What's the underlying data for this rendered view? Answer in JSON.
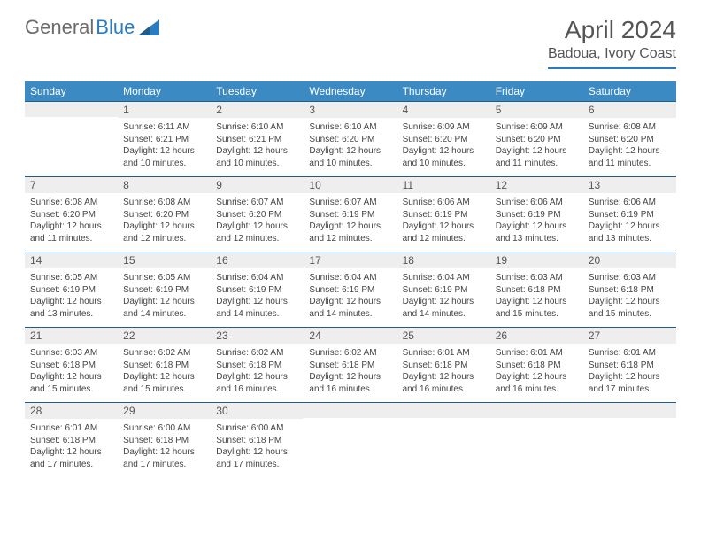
{
  "brand": {
    "part1": "General",
    "part2": "Blue"
  },
  "title": "April 2024",
  "location": "Badoua, Ivory Coast",
  "colors": {
    "header_bg": "#3b8ac4",
    "header_text": "#ffffff",
    "daynum_bg": "#eeeeee",
    "rule": "#1f5c8b",
    "brand_grey": "#6b6b6b",
    "brand_blue": "#2b7bbf",
    "body_text": "#444444"
  },
  "weekdays": [
    "Sunday",
    "Monday",
    "Tuesday",
    "Wednesday",
    "Thursday",
    "Friday",
    "Saturday"
  ],
  "grid": [
    [
      {
        "day": "",
        "lines": []
      },
      {
        "day": "1",
        "lines": [
          "Sunrise: 6:11 AM",
          "Sunset: 6:21 PM",
          "Daylight: 12 hours and 10 minutes."
        ]
      },
      {
        "day": "2",
        "lines": [
          "Sunrise: 6:10 AM",
          "Sunset: 6:21 PM",
          "Daylight: 12 hours and 10 minutes."
        ]
      },
      {
        "day": "3",
        "lines": [
          "Sunrise: 6:10 AM",
          "Sunset: 6:20 PM",
          "Daylight: 12 hours and 10 minutes."
        ]
      },
      {
        "day": "4",
        "lines": [
          "Sunrise: 6:09 AM",
          "Sunset: 6:20 PM",
          "Daylight: 12 hours and 10 minutes."
        ]
      },
      {
        "day": "5",
        "lines": [
          "Sunrise: 6:09 AM",
          "Sunset: 6:20 PM",
          "Daylight: 12 hours and 11 minutes."
        ]
      },
      {
        "day": "6",
        "lines": [
          "Sunrise: 6:08 AM",
          "Sunset: 6:20 PM",
          "Daylight: 12 hours and 11 minutes."
        ]
      }
    ],
    [
      {
        "day": "7",
        "lines": [
          "Sunrise: 6:08 AM",
          "Sunset: 6:20 PM",
          "Daylight: 12 hours and 11 minutes."
        ]
      },
      {
        "day": "8",
        "lines": [
          "Sunrise: 6:08 AM",
          "Sunset: 6:20 PM",
          "Daylight: 12 hours and 12 minutes."
        ]
      },
      {
        "day": "9",
        "lines": [
          "Sunrise: 6:07 AM",
          "Sunset: 6:20 PM",
          "Daylight: 12 hours and 12 minutes."
        ]
      },
      {
        "day": "10",
        "lines": [
          "Sunrise: 6:07 AM",
          "Sunset: 6:19 PM",
          "Daylight: 12 hours and 12 minutes."
        ]
      },
      {
        "day": "11",
        "lines": [
          "Sunrise: 6:06 AM",
          "Sunset: 6:19 PM",
          "Daylight: 12 hours and 12 minutes."
        ]
      },
      {
        "day": "12",
        "lines": [
          "Sunrise: 6:06 AM",
          "Sunset: 6:19 PM",
          "Daylight: 12 hours and 13 minutes."
        ]
      },
      {
        "day": "13",
        "lines": [
          "Sunrise: 6:06 AM",
          "Sunset: 6:19 PM",
          "Daylight: 12 hours and 13 minutes."
        ]
      }
    ],
    [
      {
        "day": "14",
        "lines": [
          "Sunrise: 6:05 AM",
          "Sunset: 6:19 PM",
          "Daylight: 12 hours and 13 minutes."
        ]
      },
      {
        "day": "15",
        "lines": [
          "Sunrise: 6:05 AM",
          "Sunset: 6:19 PM",
          "Daylight: 12 hours and 14 minutes."
        ]
      },
      {
        "day": "16",
        "lines": [
          "Sunrise: 6:04 AM",
          "Sunset: 6:19 PM",
          "Daylight: 12 hours and 14 minutes."
        ]
      },
      {
        "day": "17",
        "lines": [
          "Sunrise: 6:04 AM",
          "Sunset: 6:19 PM",
          "Daylight: 12 hours and 14 minutes."
        ]
      },
      {
        "day": "18",
        "lines": [
          "Sunrise: 6:04 AM",
          "Sunset: 6:19 PM",
          "Daylight: 12 hours and 14 minutes."
        ]
      },
      {
        "day": "19",
        "lines": [
          "Sunrise: 6:03 AM",
          "Sunset: 6:18 PM",
          "Daylight: 12 hours and 15 minutes."
        ]
      },
      {
        "day": "20",
        "lines": [
          "Sunrise: 6:03 AM",
          "Sunset: 6:18 PM",
          "Daylight: 12 hours and 15 minutes."
        ]
      }
    ],
    [
      {
        "day": "21",
        "lines": [
          "Sunrise: 6:03 AM",
          "Sunset: 6:18 PM",
          "Daylight: 12 hours and 15 minutes."
        ]
      },
      {
        "day": "22",
        "lines": [
          "Sunrise: 6:02 AM",
          "Sunset: 6:18 PM",
          "Daylight: 12 hours and 15 minutes."
        ]
      },
      {
        "day": "23",
        "lines": [
          "Sunrise: 6:02 AM",
          "Sunset: 6:18 PM",
          "Daylight: 12 hours and 16 minutes."
        ]
      },
      {
        "day": "24",
        "lines": [
          "Sunrise: 6:02 AM",
          "Sunset: 6:18 PM",
          "Daylight: 12 hours and 16 minutes."
        ]
      },
      {
        "day": "25",
        "lines": [
          "Sunrise: 6:01 AM",
          "Sunset: 6:18 PM",
          "Daylight: 12 hours and 16 minutes."
        ]
      },
      {
        "day": "26",
        "lines": [
          "Sunrise: 6:01 AM",
          "Sunset: 6:18 PM",
          "Daylight: 12 hours and 16 minutes."
        ]
      },
      {
        "day": "27",
        "lines": [
          "Sunrise: 6:01 AM",
          "Sunset: 6:18 PM",
          "Daylight: 12 hours and 17 minutes."
        ]
      }
    ],
    [
      {
        "day": "28",
        "lines": [
          "Sunrise: 6:01 AM",
          "Sunset: 6:18 PM",
          "Daylight: 12 hours and 17 minutes."
        ]
      },
      {
        "day": "29",
        "lines": [
          "Sunrise: 6:00 AM",
          "Sunset: 6:18 PM",
          "Daylight: 12 hours and 17 minutes."
        ]
      },
      {
        "day": "30",
        "lines": [
          "Sunrise: 6:00 AM",
          "Sunset: 6:18 PM",
          "Daylight: 12 hours and 17 minutes."
        ]
      },
      {
        "day": "",
        "lines": []
      },
      {
        "day": "",
        "lines": []
      },
      {
        "day": "",
        "lines": []
      },
      {
        "day": "",
        "lines": []
      }
    ]
  ]
}
